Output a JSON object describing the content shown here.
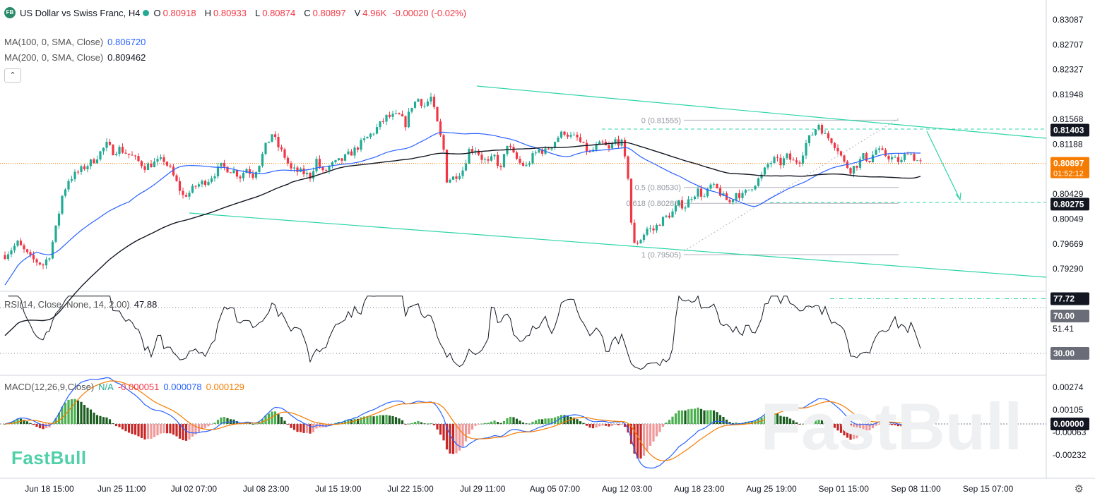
{
  "header": {
    "symbol_badge": "FB",
    "title": "US Dollar vs Swiss Franc, H4",
    "open_label": "O",
    "open": "0.80918",
    "high_label": "H",
    "high": "0.80933",
    "low_label": "L",
    "low": "0.80874",
    "close_label": "C",
    "close": "0.80897",
    "volume_label": "V",
    "volume": "4.96K",
    "change": "-0.00020 (-0.02%)"
  },
  "ma100": {
    "label": "MA(100, 0, SMA, Close)",
    "value": "0.806720",
    "color": "#2962ff"
  },
  "ma200": {
    "label": "MA(200, 0, SMA, Close)",
    "value": "0.809462",
    "color": "#131722"
  },
  "collapse_icon": "chevron-up-icon",
  "rsi_legend": {
    "label": "RSI(14, Close, None, 14, 2.00)",
    "value": "47.88"
  },
  "macd_legend": {
    "label": "MACD(12,26,9,Close)",
    "na": "N/A",
    "hist": "-0.000051",
    "macd": "0.000078",
    "signal": "0.000129"
  },
  "watermark": "FastBull",
  "settings_icon": "gear-icon",
  "colors": {
    "up": "#22ab94",
    "down": "#f23645",
    "channel": "#2ed4a8",
    "ma100": "#2962ff",
    "ma200": "#131722",
    "rsi": "#131722",
    "macd": "#2962ff",
    "signal": "#f57c00"
  },
  "chart_data": {
    "type": "candlestick",
    "price_axis": {
      "ticks": [
        "0.83087",
        "0.82707",
        "0.82327",
        "0.81948",
        "0.81568",
        "0.81188",
        "0.80429",
        "0.80049",
        "0.79669",
        "0.79290"
      ]
    },
    "rsi_axis": {
      "ticks": [
        "51.41"
      ]
    },
    "macd_axis": {
      "ticks": [
        "0.00274",
        "0.00105",
        "-0.00063",
        "-0.00232"
      ]
    },
    "time_axis": [
      "Jun 18 15:00",
      "Jun 25 11:00",
      "Jul 02 07:00",
      "Jul 08 23:00",
      "Jul 15 19:00",
      "Jul 22 15:00",
      "Jul 29 11:00",
      "Aug 05 07:00",
      "Aug 12 03:00",
      "Aug 18 23:00",
      "Aug 25 19:00",
      "Sep 01 15:00",
      "Sep 08 11:00",
      "Sep 15 07:00"
    ],
    "price_labels": [
      {
        "value": "0.81403",
        "style": "dark"
      },
      {
        "value": "0.80897",
        "sub": "01:52:12",
        "style": "orange"
      },
      {
        "value": "0.80275",
        "style": "dark"
      }
    ],
    "rsi_labels": [
      {
        "value": "77.72",
        "style": "dark"
      },
      {
        "value": "70.00",
        "style": "gray"
      },
      {
        "value": "30.00",
        "style": "gray"
      }
    ],
    "macd_labels": [
      {
        "value": "0.00000",
        "style": "dark"
      }
    ],
    "fib_levels": [
      {
        "label": "0 (0.81555)",
        "price": 0.81555
      },
      {
        "label": "0.5 (0.80530)",
        "price": 0.8053
      },
      {
        "label": "0.618 (0.80288)",
        "price": 0.80288
      },
      {
        "label": "1 (0.79505)",
        "price": 0.79505
      }
    ],
    "path": [
      [
        0,
        0.795
      ],
      [
        4,
        0.7968
      ],
      [
        8,
        0.7945
      ],
      [
        12,
        0.7935
      ],
      [
        14,
        0.795
      ],
      [
        16,
        0.799
      ],
      [
        18,
        0.804
      ],
      [
        20,
        0.8065
      ],
      [
        24,
        0.808
      ],
      [
        28,
        0.8095
      ],
      [
        32,
        0.8118
      ],
      [
        34,
        0.8108
      ],
      [
        36,
        0.8112
      ],
      [
        40,
        0.81
      ],
      [
        44,
        0.8085
      ],
      [
        48,
        0.8092
      ],
      [
        50,
        0.8095
      ],
      [
        52,
        0.808
      ],
      [
        54,
        0.806
      ],
      [
        56,
        0.804
      ],
      [
        58,
        0.8045
      ],
      [
        60,
        0.8055
      ],
      [
        64,
        0.8065
      ],
      [
        68,
        0.8085
      ],
      [
        72,
        0.8078
      ],
      [
        74,
        0.807
      ],
      [
        76,
        0.8082
      ],
      [
        78,
        0.8072
      ],
      [
        80,
        0.809
      ],
      [
        82,
        0.8115
      ],
      [
        84,
        0.8135
      ],
      [
        86,
        0.8115
      ],
      [
        88,
        0.81
      ],
      [
        90,
        0.808
      ],
      [
        94,
        0.8075
      ],
      [
        96,
        0.807
      ],
      [
        98,
        0.8095
      ],
      [
        100,
        0.8075
      ],
      [
        102,
        0.8085
      ],
      [
        106,
        0.8095
      ],
      [
        110,
        0.811
      ],
      [
        112,
        0.812
      ],
      [
        116,
        0.8138
      ],
      [
        120,
        0.816
      ],
      [
        124,
        0.8162
      ],
      [
        126,
        0.815
      ],
      [
        128,
        0.8178
      ],
      [
        130,
        0.8188
      ],
      [
        132,
        0.8178
      ],
      [
        134,
        0.819
      ],
      [
        136,
        0.815
      ],
      [
        138,
        0.811
      ],
      [
        139,
        0.8065
      ],
      [
        141,
        0.8068
      ],
      [
        144,
        0.808
      ],
      [
        146,
        0.811
      ],
      [
        148,
        0.8112
      ],
      [
        150,
        0.8098
      ],
      [
        152,
        0.809
      ],
      [
        154,
        0.81
      ],
      [
        156,
        0.808
      ],
      [
        158,
        0.812
      ],
      [
        160,
        0.8102
      ],
      [
        162,
        0.809
      ],
      [
        164,
        0.8085
      ],
      [
        166,
        0.81
      ],
      [
        168,
        0.811
      ],
      [
        170,
        0.8108
      ],
      [
        172,
        0.8118
      ],
      [
        174,
        0.813
      ],
      [
        176,
        0.8138
      ],
      [
        178,
        0.813
      ],
      [
        180,
        0.8128
      ],
      [
        182,
        0.8115
      ],
      [
        184,
        0.8105
      ],
      [
        186,
        0.8115
      ],
      [
        188,
        0.812
      ],
      [
        190,
        0.811
      ],
      [
        192,
        0.8125
      ],
      [
        194,
        0.812
      ],
      [
        196,
        0.807
      ],
      [
        197,
        0.8
      ],
      [
        198,
        0.7965
      ],
      [
        200,
        0.7975
      ],
      [
        202,
        0.799
      ],
      [
        204,
        0.7988
      ],
      [
        206,
        0.8
      ],
      [
        208,
        0.8008
      ],
      [
        210,
        0.8015
      ],
      [
        212,
        0.8028
      ],
      [
        214,
        0.8025
      ],
      [
        216,
        0.804
      ],
      [
        218,
        0.8048
      ],
      [
        220,
        0.8038
      ],
      [
        222,
        0.8055
      ],
      [
        224,
        0.805
      ],
      [
        226,
        0.8038
      ],
      [
        228,
        0.803
      ],
      [
        230,
        0.8045
      ],
      [
        232,
        0.804
      ],
      [
        234,
        0.805
      ],
      [
        236,
        0.806
      ],
      [
        238,
        0.807
      ],
      [
        240,
        0.8088
      ],
      [
        242,
        0.8095
      ],
      [
        244,
        0.809
      ],
      [
        246,
        0.81
      ],
      [
        248,
        0.8092
      ],
      [
        250,
        0.8095
      ],
      [
        252,
        0.812
      ],
      [
        254,
        0.8135
      ],
      [
        256,
        0.815
      ],
      [
        258,
        0.8132
      ],
      [
        260,
        0.8125
      ],
      [
        262,
        0.8112
      ],
      [
        264,
        0.809
      ],
      [
        266,
        0.808
      ],
      [
        268,
        0.8088
      ],
      [
        270,
        0.81
      ],
      [
        272,
        0.8095
      ],
      [
        274,
        0.811
      ],
      [
        276,
        0.8105
      ],
      [
        278,
        0.81
      ],
      [
        280,
        0.8095
      ],
      [
        282,
        0.8092
      ],
      [
        284,
        0.811
      ],
      [
        286,
        0.8098
      ],
      [
        288,
        0.809
      ]
    ]
  }
}
